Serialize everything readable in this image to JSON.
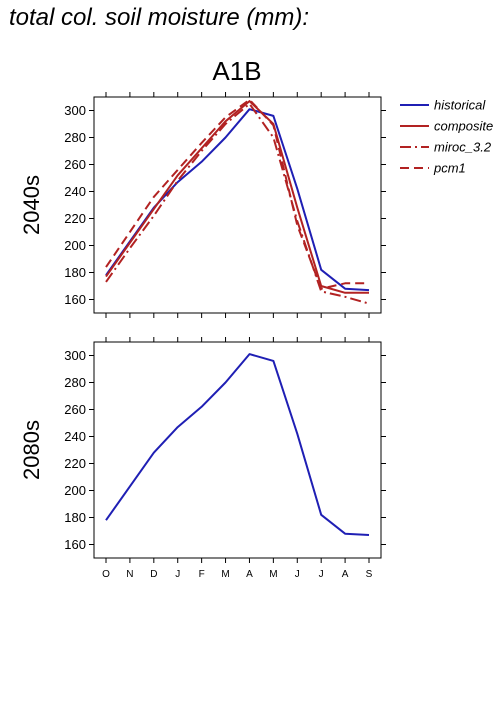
{
  "title": "total col. soil moisture (mm):",
  "chart_data": [
    {
      "type": "line",
      "panel": "2040s",
      "scenario": "A1B",
      "row_label": "2040s",
      "x": [
        "O",
        "N",
        "D",
        "J",
        "F",
        "M",
        "A",
        "M",
        "J",
        "J",
        "A",
        "S"
      ],
      "ylim": [
        150,
        310
      ],
      "yticks": [
        160,
        180,
        200,
        220,
        240,
        260,
        280,
        300
      ],
      "legend_position": "right",
      "series": [
        {
          "name": "historical",
          "color": "#1f1fb4",
          "dash": "solid",
          "values": [
            178,
            203,
            228,
            247,
            262,
            280,
            301,
            296,
            242,
            182,
            168,
            167
          ]
        },
        {
          "name": "composite",
          "color": "#b22222",
          "dash": "solid",
          "values": [
            177,
            202,
            227,
            252,
            272,
            292,
            307,
            290,
            228,
            170,
            165,
            165
          ]
        },
        {
          "name": "miroc_3.2",
          "color": "#b22222",
          "dash": "dashdot",
          "values": [
            173,
            198,
            222,
            248,
            270,
            290,
            305,
            280,
            218,
            166,
            162,
            157
          ]
        },
        {
          "name": "pcm1",
          "color": "#b22222",
          "dash": "dashed",
          "values": [
            184,
            210,
            236,
            256,
            276,
            295,
            308,
            289,
            215,
            168,
            172,
            172
          ]
        }
      ]
    },
    {
      "type": "line",
      "panel": "2080s",
      "row_label": "2080s",
      "x": [
        "O",
        "N",
        "D",
        "J",
        "F",
        "M",
        "A",
        "M",
        "J",
        "J",
        "A",
        "S"
      ],
      "xticklabels": [
        "O",
        "N",
        "D",
        "J",
        "F",
        "M",
        "A",
        "M",
        "J",
        "J",
        "A",
        "S"
      ],
      "ylim": [
        150,
        310
      ],
      "yticks": [
        160,
        180,
        200,
        220,
        240,
        260,
        280,
        300
      ],
      "series": [
        {
          "name": "historical",
          "color": "#1f1fb4",
          "dash": "solid",
          "values": [
            178,
            203,
            228,
            247,
            262,
            280,
            301,
            296,
            242,
            182,
            168,
            167
          ]
        }
      ]
    }
  ]
}
